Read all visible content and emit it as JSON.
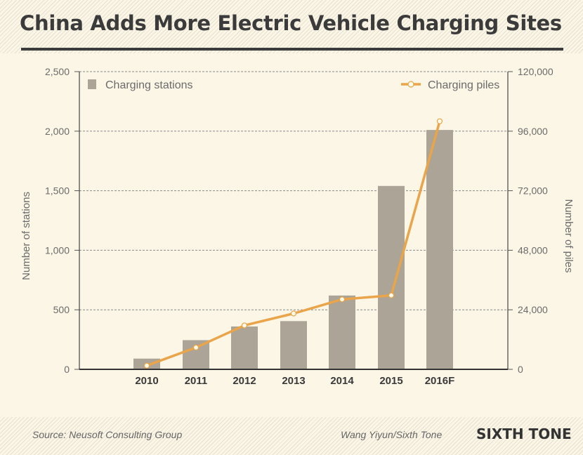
{
  "title": "China Adds More Electric Vehicle Charging Sites",
  "footer": {
    "source": "Source: Neusoft Consulting Group",
    "credit": "Wang Yiyun/Sixth Tone",
    "brand": "SIXTH TONE"
  },
  "colors": {
    "bar": "#aba497",
    "line": "#eaa449",
    "grid": "#8a8a8a",
    "text": "#6b6b6b",
    "background": "#fcf6e6"
  },
  "chart_data": {
    "type": "bar",
    "categories": [
      "2010",
      "2011",
      "2012",
      "2013",
      "2014",
      "2015",
      "2016F"
    ],
    "series": [
      {
        "name": "Charging stations",
        "type": "bar",
        "axis": "left",
        "values": [
          90,
          245,
          360,
          405,
          620,
          1540,
          2010
        ]
      },
      {
        "name": "Charging piles",
        "type": "line",
        "axis": "right",
        "values": [
          1500,
          8800,
          17700,
          22500,
          28200,
          29800,
          100000
        ]
      }
    ],
    "ylabel": "Number of stations",
    "y2label": "Number of piles",
    "ylim": [
      0,
      2500
    ],
    "y2lim": [
      0,
      120000
    ],
    "yticks": [
      "0",
      "500",
      "1,000",
      "1,500",
      "2,000",
      "2,500"
    ],
    "y2ticks": [
      "0",
      "24,000",
      "48,000",
      "72,000",
      "96,000",
      "120,000"
    ],
    "grid": true,
    "legend": {
      "bar": "top-left",
      "line": "top-right"
    }
  }
}
